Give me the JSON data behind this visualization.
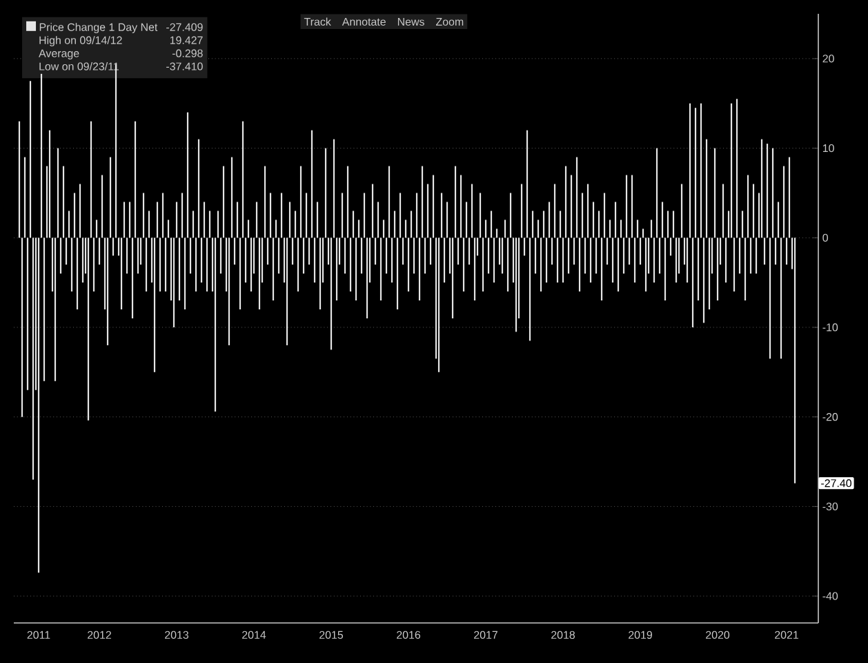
{
  "chart_data": {
    "type": "bar",
    "legend": "top left",
    "grid": "y",
    "ylim": [
      -43,
      25
    ],
    "yticks": [
      -40,
      -30,
      -20,
      -10,
      0,
      10,
      20
    ],
    "categories": [
      null,
      null,
      null,
      null,
      null,
      null,
      null,
      "2011",
      null,
      null,
      null,
      null,
      null,
      null,
      null,
      null,
      null,
      null,
      null,
      null,
      null,
      null,
      null,
      null,
      null,
      null,
      null,
      null,
      null,
      "2012",
      null,
      null,
      null,
      null,
      null,
      null,
      null,
      null,
      null,
      null,
      null,
      null,
      null,
      null,
      null,
      null,
      null,
      null,
      null,
      null,
      null,
      null,
      null,
      null,
      null,
      null,
      null,
      "2013",
      null,
      null,
      null,
      null,
      null,
      null,
      null,
      null,
      null,
      null,
      null,
      null,
      null,
      null,
      null,
      null,
      null,
      null,
      null,
      null,
      null,
      null,
      null,
      null,
      null,
      null,
      null,
      "2014",
      null,
      null,
      null,
      null,
      null,
      null,
      null,
      null,
      null,
      null,
      null,
      null,
      null,
      null,
      null,
      null,
      null,
      null,
      null,
      null,
      null,
      null,
      null,
      null,
      null,
      null,
      null,
      "2015",
      null,
      null,
      null,
      null,
      null,
      null,
      null,
      null,
      null,
      null,
      null,
      null,
      null,
      null,
      null,
      null,
      null,
      null,
      null,
      null,
      null,
      null,
      null,
      null,
      null,
      null,
      null,
      "2016",
      null,
      null,
      null,
      null,
      null,
      null,
      null,
      null,
      null,
      null,
      null,
      null,
      null,
      null,
      null,
      null,
      null,
      null,
      null,
      null,
      null,
      null,
      null,
      null,
      null,
      null,
      null,
      "2017",
      null,
      null,
      null,
      null,
      null,
      null,
      null,
      null,
      null,
      null,
      null,
      null,
      null,
      null,
      null,
      null,
      null,
      null,
      null,
      null,
      null,
      null,
      null,
      null,
      null,
      null,
      null,
      "2018",
      null,
      null,
      null,
      null,
      null,
      null,
      null,
      null,
      null,
      null,
      null,
      null,
      null,
      null,
      null,
      null,
      null,
      null,
      null,
      null,
      null,
      null,
      null,
      null,
      null,
      null,
      null,
      "2019",
      null,
      null,
      null,
      null,
      null,
      null,
      null,
      null,
      null,
      null,
      null,
      null,
      null,
      null,
      null,
      null,
      null,
      null,
      null,
      null,
      null,
      null,
      null,
      null,
      null,
      null,
      null,
      "2020",
      null,
      null,
      null,
      null,
      null,
      null,
      null,
      null,
      null,
      null,
      null,
      null,
      null,
      null,
      null,
      null,
      null,
      null,
      null,
      null,
      null,
      null,
      null,
      null,
      "2021",
      null,
      null,
      null
    ],
    "series": [
      {
        "name": "Price Change 1 Day Net",
        "color": "#e6e6e6",
        "values": [
          13,
          -20,
          9,
          -17,
          17.5,
          -27,
          -17,
          -37.4,
          18.3,
          -16,
          8,
          12,
          -6,
          -16,
          10,
          -4,
          8,
          -3,
          3,
          -6,
          5,
          -8,
          6,
          -5,
          -4,
          -20.4,
          13,
          -6,
          2,
          -3,
          7,
          -8,
          -12,
          9,
          -2,
          19.4,
          -2,
          -8,
          4,
          -4,
          4,
          -9,
          13,
          -4,
          -3,
          5,
          -6,
          3,
          -5,
          -15,
          4,
          -6,
          5,
          -6,
          2,
          -7,
          -10,
          4,
          -7,
          5,
          -8,
          14,
          -4,
          3,
          -6,
          11,
          -5,
          4,
          -6,
          3,
          -6,
          -19.4,
          3,
          -4,
          8,
          -6,
          -12,
          9,
          -3,
          4,
          -8,
          13,
          -5,
          2,
          -6,
          -4,
          4,
          -8,
          -5,
          8,
          -3,
          5,
          -7,
          2,
          -4,
          5,
          -5,
          -12,
          4,
          -3,
          3,
          -6,
          8,
          -4,
          5,
          -3,
          12,
          -5,
          4,
          -8,
          -5,
          10,
          -3,
          -12.5,
          11,
          -7,
          -3,
          5,
          -4,
          8,
          -6,
          3,
          -7,
          2,
          -4,
          5,
          -9,
          -5,
          6,
          -3,
          4,
          -7,
          2,
          -4,
          8,
          -5,
          3,
          -8,
          5,
          -3,
          2,
          -6,
          3,
          -4,
          5,
          -7,
          8,
          -4,
          6,
          -3,
          7,
          -13.5,
          -15,
          5,
          -5,
          4,
          -4,
          -9,
          8,
          -3,
          7,
          -6,
          4,
          -3,
          6,
          -7,
          -2,
          5,
          -6,
          2,
          -4,
          3,
          -5,
          1,
          -3,
          -4,
          2,
          -6,
          5,
          -5,
          -10.5,
          -9,
          6,
          -2,
          12,
          -11.5,
          3,
          -4,
          2,
          -6,
          3,
          -5,
          4,
          -3,
          6,
          -5,
          3,
          -5,
          8,
          -4,
          7,
          -3,
          9,
          -6,
          5,
          -4,
          6,
          -5,
          4,
          -4,
          3,
          -7,
          5,
          -3,
          2,
          -5,
          4,
          -6,
          2,
          -4,
          7,
          -3,
          7,
          -5,
          2,
          -3,
          1,
          -6,
          -4,
          2,
          -5,
          10,
          -4,
          4,
          -7,
          3,
          -2,
          3,
          -5,
          -4,
          6,
          -3,
          -5,
          15,
          -10,
          14.5,
          -7,
          15,
          -9.5,
          11,
          -8,
          -4,
          10,
          -7,
          -3,
          6,
          -5,
          3,
          15,
          -6,
          15.5,
          -4,
          3,
          -7,
          7,
          -4,
          6,
          -4,
          5,
          11,
          -3,
          10.5,
          -13.5,
          10,
          -3,
          4,
          -13.5,
          8,
          -3,
          9,
          -3.5,
          -27.4
        ]
      }
    ],
    "annotations": [
      "-27.409",
      "High on 09/14/12",
      "19.427",
      "Average",
      "-0.298",
      "Low on 09/23/11",
      "-37.410",
      "Track",
      "Annotate",
      "News",
      "Zoom",
      "-27.40"
    ]
  }
}
